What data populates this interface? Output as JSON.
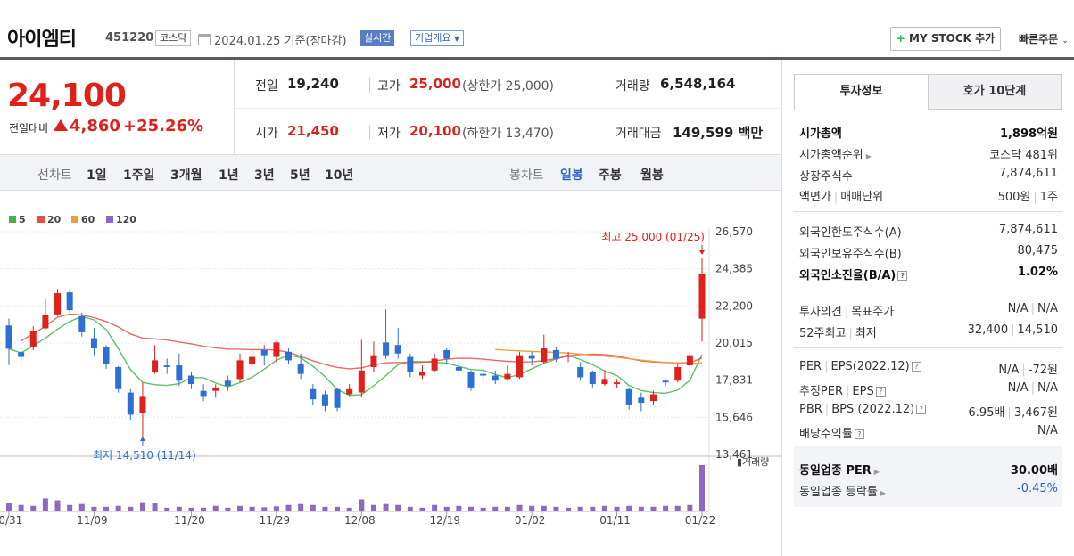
{
  "header": {
    "name": "아이엠티",
    "code": "451220",
    "market": "코스닥",
    "date": "2024.01.25",
    "basis": "기준(장마감)",
    "live_label": "실시간",
    "corp_label": "기업개요",
    "mystock_label": "MY STOCK 추가",
    "quick_order": "빠른주문"
  },
  "price": {
    "current": "24,100",
    "change_label": "전일대비",
    "change": "4,860",
    "change_pct": "+25.26%",
    "prev_label": "전일",
    "prev": "19,240",
    "high_label": "고가",
    "high": "25,000",
    "high_limit": "(상한가 25,000)",
    "volume_label": "거래량",
    "volume": "6,548,164",
    "open_label": "시가",
    "open": "21,450",
    "low_label": "저가",
    "low": "20,100",
    "low_limit": "(하한가 13,470)",
    "amount_label": "거래대금",
    "amount": "149,599",
    "amount_unit": "백만"
  },
  "period_bar": {
    "line_label": "선차트",
    "line_items": [
      "1일",
      "1주일",
      "3개월",
      "1년",
      "3년",
      "5년",
      "10년"
    ],
    "candle_label": "봉차트",
    "candle_items": [
      "일봉",
      "주봉",
      "월봉"
    ],
    "candle_selected": "일봉"
  },
  "chart_data": {
    "type": "candlestick",
    "legend": [
      {
        "name": "5",
        "color": "#44b648"
      },
      {
        "name": "20",
        "color": "#e2504a"
      },
      {
        "name": "60",
        "color": "#f39a3b"
      },
      {
        "name": "120",
        "color": "#9068c2"
      }
    ],
    "colors": {
      "up": "#e0201a",
      "down": "#2e6fd6",
      "volume": "#9068c2"
    },
    "y_ticks": [
      "26,570",
      "24,385",
      "22,200",
      "20,015",
      "17,831",
      "15,646",
      "13,461"
    ],
    "ylim": [
      13461,
      26570
    ],
    "x_ticks": [
      "10/31",
      "11/09",
      "11/20",
      "11/29",
      "12/08",
      "12/19",
      "01/02",
      "01/11",
      "01/22"
    ],
    "x_tick_index": [
      0,
      7,
      15,
      22,
      29,
      36,
      43,
      50,
      57
    ],
    "high_annot": "최고 25,000 (01/25)",
    "low_annot": "최저 14,510 (11/14)",
    "volume_label": "거래량",
    "candles": [
      [
        21050,
        19680,
        21450,
        18720
      ],
      [
        19480,
        19200,
        19780,
        18880
      ],
      [
        19780,
        20700,
        21000,
        19600
      ],
      [
        20880,
        21650,
        22600,
        20800
      ],
      [
        21700,
        22950,
        23200,
        21600
      ],
      [
        23000,
        21950,
        23200,
        21800
      ],
      [
        21600,
        20650,
        21800,
        20400
      ],
      [
        20300,
        19700,
        20900,
        19300
      ],
      [
        19800,
        18800,
        19900,
        18500
      ],
      [
        18600,
        17300,
        18650,
        17100
      ],
      [
        17100,
        15800,
        17300,
        15500
      ],
      [
        15900,
        16900,
        17700,
        14510
      ],
      [
        18300,
        19000,
        19900,
        18200
      ],
      [
        18700,
        18600,
        19100,
        18200
      ],
      [
        18700,
        17800,
        19400,
        17500
      ],
      [
        18100,
        17600,
        18300,
        17300
      ],
      [
        17200,
        16900,
        17600,
        16600
      ],
      [
        17200,
        17400,
        17600,
        16800
      ],
      [
        17800,
        17500,
        18100,
        17200
      ],
      [
        17900,
        19000,
        19400,
        17700
      ],
      [
        18800,
        19200,
        19600,
        18500
      ],
      [
        19600,
        19300,
        19900,
        18700
      ],
      [
        19200,
        20050,
        20100,
        18900
      ],
      [
        19500,
        19000,
        19700,
        18800
      ],
      [
        18800,
        18200,
        19400,
        17900
      ],
      [
        17300,
        16700,
        17600,
        16400
      ],
      [
        17000,
        16300,
        17200,
        16000
      ],
      [
        17300,
        16200,
        17400,
        16000
      ],
      [
        17000,
        17300,
        17600,
        16900
      ],
      [
        17100,
        18400,
        20200,
        16800
      ],
      [
        18600,
        19300,
        20100,
        18300
      ],
      [
        20050,
        19300,
        22000,
        19100
      ],
      [
        19900,
        19400,
        20900,
        19100
      ],
      [
        19200,
        18300,
        19400,
        18000
      ],
      [
        18100,
        18300,
        18700,
        17900
      ],
      [
        18400,
        19100,
        19400,
        18300
      ],
      [
        19600,
        19100,
        19700,
        18800
      ],
      [
        18600,
        18400,
        18900,
        18100
      ],
      [
        18300,
        17400,
        18400,
        17200
      ],
      [
        18200,
        18100,
        18500,
        17700
      ],
      [
        18100,
        17800,
        18400,
        17600
      ],
      [
        17900,
        18200,
        18700,
        17800
      ],
      [
        18000,
        19300,
        19500,
        17900
      ],
      [
        19300,
        19100,
        19500,
        18700
      ],
      [
        18900,
        19700,
        20500,
        18800
      ],
      [
        19600,
        19100,
        19800,
        18900
      ],
      [
        19200,
        19300,
        19500,
        18900
      ],
      [
        18600,
        18000,
        18900,
        17800
      ],
      [
        18300,
        17600,
        18400,
        17400
      ],
      [
        17600,
        17900,
        18400,
        17500
      ],
      [
        17600,
        17700,
        17900,
        17400
      ],
      [
        17300,
        16400,
        17400,
        16100
      ],
      [
        16800,
        16500,
        17100,
        16000
      ],
      [
        16600,
        17000,
        17200,
        16400
      ],
      [
        17800,
        17700,
        17900,
        17500
      ],
      [
        17800,
        18600,
        18800,
        17700
      ],
      [
        18700,
        19300,
        19400,
        17900
      ],
      [
        21450,
        24100,
        25000,
        20100
      ]
    ],
    "volumes": [
      18,
      14,
      12,
      28,
      24,
      14,
      16,
      10,
      10,
      12,
      10,
      20,
      18,
      8,
      10,
      8,
      8,
      12,
      8,
      12,
      10,
      9,
      11,
      14,
      16,
      14,
      10,
      10,
      8,
      26,
      14,
      16,
      14,
      10,
      8,
      14,
      10,
      12,
      10,
      8,
      10,
      10,
      14,
      12,
      12,
      10,
      8,
      10,
      10,
      12,
      10,
      12,
      10,
      10,
      12,
      12,
      14,
      100
    ]
  },
  "info": {
    "tab_active": "투자정보",
    "tab_inactive": "호가 10단계",
    "rows": [
      {
        "label": "시가총액",
        "value": "1,898억원"
      },
      {
        "label": "시가총액순위",
        "value": "코스닥 481위"
      },
      {
        "label": "상장주식수",
        "value": "7,874,611"
      },
      {
        "label": "액면가",
        "label2": "매매단위",
        "value": "500원",
        "value2": "1주"
      },
      {
        "label": "외국인한도주식수(A)",
        "value": "7,874,611"
      },
      {
        "label": "외국인보유주식수(B)",
        "value": "80,475"
      },
      {
        "label": "외국인소진율(B/A)",
        "value": "1.02%"
      },
      {
        "label": "투자의견",
        "label2": "목표주가",
        "value": "N/A",
        "value2": "N/A"
      },
      {
        "label": "52주최고",
        "label2": "최저",
        "value": "32,400",
        "value2": "14,510"
      },
      {
        "label": "PER",
        "label2": "EPS(2022.12)",
        "value": "N/A",
        "value2": "-72원"
      },
      {
        "label": "추정PER",
        "label2": "EPS",
        "value": "N/A",
        "value2": "N/A"
      },
      {
        "label": "PBR",
        "label2": "BPS (2022.12)",
        "value": "6.95배",
        "value2": "3,467원"
      },
      {
        "label": "배당수익률",
        "value": "N/A"
      },
      {
        "label": "동일업종 PER",
        "value": "30.00배"
      },
      {
        "label": "동일업종 등락률",
        "value": "-0.45%"
      }
    ]
  }
}
